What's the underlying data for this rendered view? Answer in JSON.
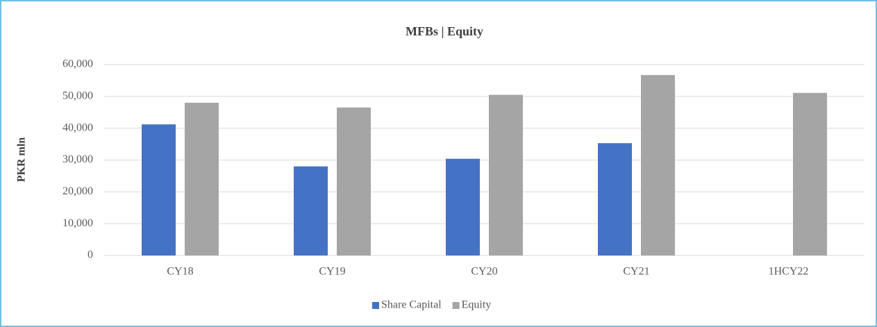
{
  "chart_data": {
    "type": "bar",
    "title": "MFBs | Equity",
    "y_label": "PKR mln",
    "categories": [
      "CY18",
      "CY19",
      "CY20",
      "CY21",
      "1HCY22"
    ],
    "series": [
      {
        "name": "Share Capital",
        "color": "#4472c4",
        "values": [
          41200,
          28000,
          30400,
          35300,
          null
        ]
      },
      {
        "name": "Equity",
        "color": "#a5a5a5",
        "values": [
          48000,
          46500,
          50500,
          56700,
          51100
        ]
      }
    ],
    "ylim": [
      0,
      60000
    ],
    "yticks": [
      0,
      {
        "value": 10000,
        "label": "10,000"
      },
      {
        "value": 20000,
        "label": "20,000"
      },
      {
        "value": 30000,
        "label": "30,000"
      },
      {
        "value": 40000,
        "label": "40,000"
      },
      {
        "value": 50000,
        "label": "50,000"
      },
      {
        "value": 60000,
        "label": "60,000"
      }
    ],
    "grid": true,
    "legend": "bottom"
  }
}
